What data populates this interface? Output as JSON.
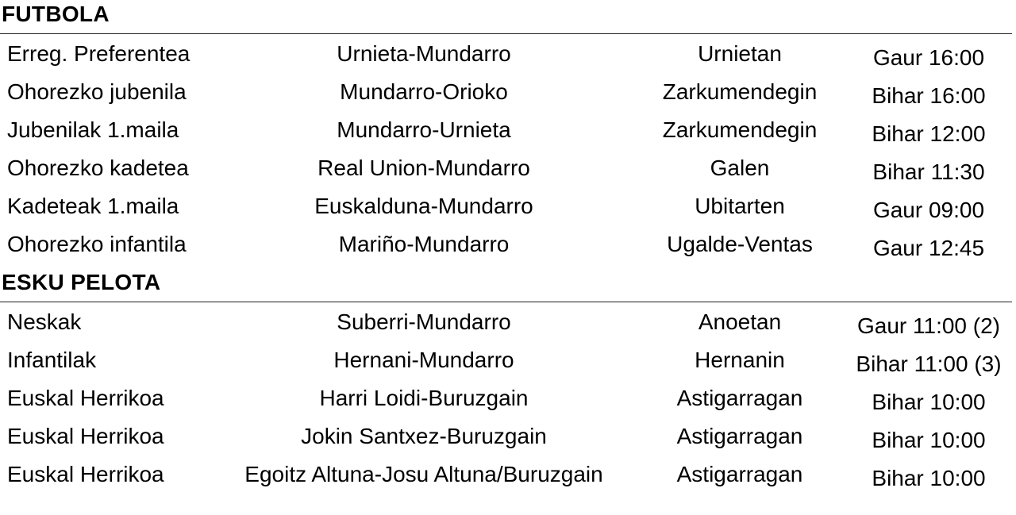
{
  "sections": [
    {
      "title": "FUTBOLA",
      "rows": [
        {
          "category": "Erreg. Preferentea",
          "match": "Urnieta-Mundarro",
          "venue": "Urnietan",
          "time": "Gaur 16:00"
        },
        {
          "category": "Ohorezko jubenila",
          "match": "Mundarro-Orioko",
          "venue": "Zarkumendegin",
          "time": "Bihar 16:00"
        },
        {
          "category": "Jubenilak 1.maila",
          "match": "Mundarro-Urnieta",
          "venue": "Zarkumendegin",
          "time": "Bihar 12:00"
        },
        {
          "category": "Ohorezko kadetea",
          "match": "Real Union-Mundarro",
          "venue": "Galen",
          "time": "Bihar 11:30"
        },
        {
          "category": "Kadeteak 1.maila",
          "match": "Euskalduna-Mundarro",
          "venue": "Ubitarten",
          "time": "Gaur 09:00"
        },
        {
          "category": "Ohorezko infantila",
          "match": "Mariño-Mundarro",
          "venue": "Ugalde-Ventas",
          "time": "Gaur 12:45"
        }
      ]
    },
    {
      "title": "ESKU PELOTA",
      "rows": [
        {
          "category": "Neskak",
          "match": "Suberri-Mundarro",
          "venue": "Anoetan",
          "time": "Gaur 11:00 (2)"
        },
        {
          "category": "Infantilak",
          "match": "Hernani-Mundarro",
          "venue": "Hernanin",
          "time": "Bihar 11:00 (3)"
        },
        {
          "category": "Euskal Herrikoa",
          "match": "Harri Loidi-Buruzgain",
          "venue": "Astigarragan",
          "time": "Bihar 10:00"
        },
        {
          "category": "Euskal Herrikoa",
          "match": "Jokin Santxez-Buruzgain",
          "venue": "Astigarragan",
          "time": "Bihar 10:00"
        },
        {
          "category": "Euskal Herrikoa",
          "match": "Egoitz Altuna-Josu Altuna/Buruzgain",
          "venue": "Astigarragan",
          "time": "Bihar 10:00"
        }
      ]
    }
  ]
}
